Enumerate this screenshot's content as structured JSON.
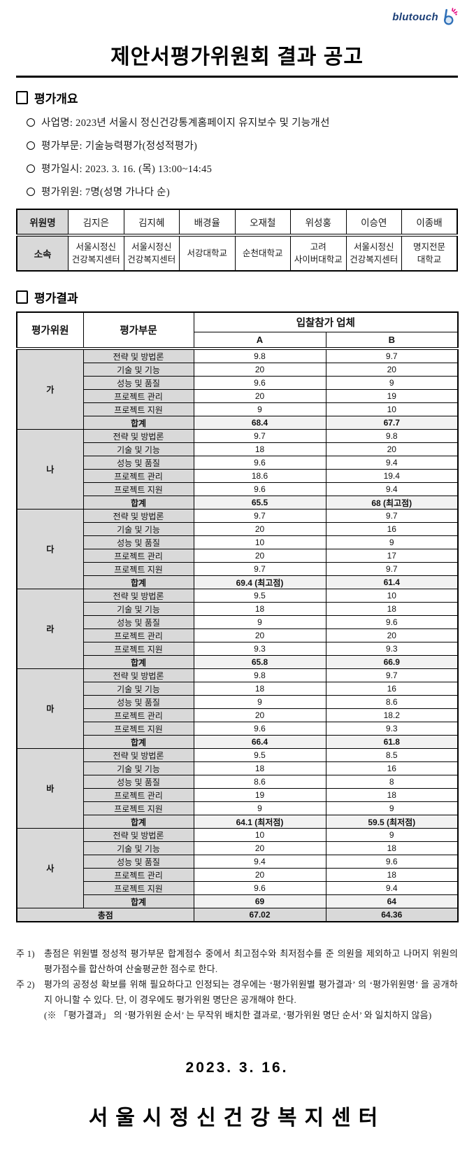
{
  "logo": {
    "text": "blutouch",
    "brand_color": "#1c3f77",
    "icon_blue": "#2e6fb7",
    "icon_pink": "#e5007d"
  },
  "title": "제안서평가위원회 결과 공고",
  "overview": {
    "heading": "평가개요",
    "items": [
      "사업명: 2023년 서울시 정신건강통계홈페이지 유지보수 및 기능개선",
      "평가부문: 기술능력평가(정성적평가)",
      "평가일시: 2023. 3. 16. (목) 13:00~14:45",
      "평가위원: 7명(성명 가나다 순)"
    ]
  },
  "committee": {
    "row1_header": "위원명",
    "row2_header": "소속",
    "members": [
      {
        "name": "김지은",
        "affiliation": "서울시정신\n건강복지센터"
      },
      {
        "name": "김지혜",
        "affiliation": "서울시정신\n건강복지센터"
      },
      {
        "name": "배경율",
        "affiliation": "서강대학교"
      },
      {
        "name": "오재철",
        "affiliation": "순천대학교"
      },
      {
        "name": "위성홍",
        "affiliation": "고려\n사이버대학교"
      },
      {
        "name": "이승연",
        "affiliation": "서울시정신\n건강복지센터"
      },
      {
        "name": "이종배",
        "affiliation": "명지전문\n대학교"
      }
    ]
  },
  "results": {
    "heading": "평가결과",
    "table": {
      "col1": "평가위원",
      "col2": "평가부문",
      "group_header": "입찰참가 업체",
      "bidders": [
        "A",
        "B"
      ],
      "criteria": [
        "전략 및 방법론",
        "기술 및 기능",
        "성능 및 품질",
        "프로젝트 관리",
        "프로젝트 지원"
      ],
      "sum_label": "합계",
      "groups": [
        {
          "evaluator": "가",
          "a": [
            "9.8",
            "20",
            "9.6",
            "20",
            "9"
          ],
          "b": [
            "9.7",
            "20",
            "9",
            "19",
            "10"
          ],
          "sum_a": "68.4",
          "sum_b": "67.7"
        },
        {
          "evaluator": "나",
          "a": [
            "9.7",
            "18",
            "9.6",
            "18.6",
            "9.6"
          ],
          "b": [
            "9.8",
            "20",
            "9.4",
            "19.4",
            "9.4"
          ],
          "sum_a": "65.5",
          "sum_b": "68  (최고점)"
        },
        {
          "evaluator": "다",
          "a": [
            "9.7",
            "20",
            "10",
            "20",
            "9.7"
          ],
          "b": [
            "9.7",
            "16",
            "9",
            "17",
            "9.7"
          ],
          "sum_a": "69.4 (최고점)",
          "sum_b": "61.4"
        },
        {
          "evaluator": "라",
          "a": [
            "9.5",
            "18",
            "9",
            "20",
            "9.3"
          ],
          "b": [
            "10",
            "18",
            "9.6",
            "20",
            "9.3"
          ],
          "sum_a": "65.8",
          "sum_b": "66.9"
        },
        {
          "evaluator": "마",
          "a": [
            "9.8",
            "18",
            "9",
            "20",
            "9.6"
          ],
          "b": [
            "9.7",
            "16",
            "8.6",
            "18.2",
            "9.3"
          ],
          "sum_a": "66.4",
          "sum_b": "61.8"
        },
        {
          "evaluator": "바",
          "a": [
            "9.5",
            "18",
            "8.6",
            "19",
            "9"
          ],
          "b": [
            "8.5",
            "16",
            "8",
            "18",
            "9"
          ],
          "sum_a": "64.1 (최저점)",
          "sum_b": "59.5 (최저점)"
        },
        {
          "evaluator": "사",
          "a": [
            "10",
            "20",
            "9.4",
            "20",
            "9.6"
          ],
          "b": [
            "9",
            "18",
            "9.6",
            "18",
            "9.4"
          ],
          "sum_a": "69",
          "sum_b": "64"
        }
      ],
      "total_label": "총점",
      "total_a": "67.02",
      "total_b": "64.36"
    }
  },
  "notes": [
    {
      "label": "주 1)",
      "text": "총점은 위원별 정성적 평가부문 합계점수 중에서 최고점수와 최저점수를 준 의원을 제외하고 나머지 위원의 평가점수를 합산하여 산술평균한 점수로 한다."
    },
    {
      "label": "주 2)",
      "text": "평가의 공정성 확보를 위해 필요하다고 인정되는 경우에는 ‘평가위원별 평가결과’ 의 ‘평가위원명’ 을 공개하지 아니할 수 있다. 단, 이 경우에도 평가위원 명단은 공개해야 한다."
    },
    {
      "label": "",
      "text": "(※ 「평가결과」 의 ‘평가위원 순서’ 는 무작위 배치한 결과로, ‘평가위원 명단 순서’ 와 일치하지 않음)"
    }
  ],
  "date": "2023.  3.  16.",
  "issuer": "서울시정신건강복지센터",
  "colors": {
    "cell_gray": "#d9d9d9",
    "sum_gray": "#f2f2f2",
    "border": "#000000"
  }
}
